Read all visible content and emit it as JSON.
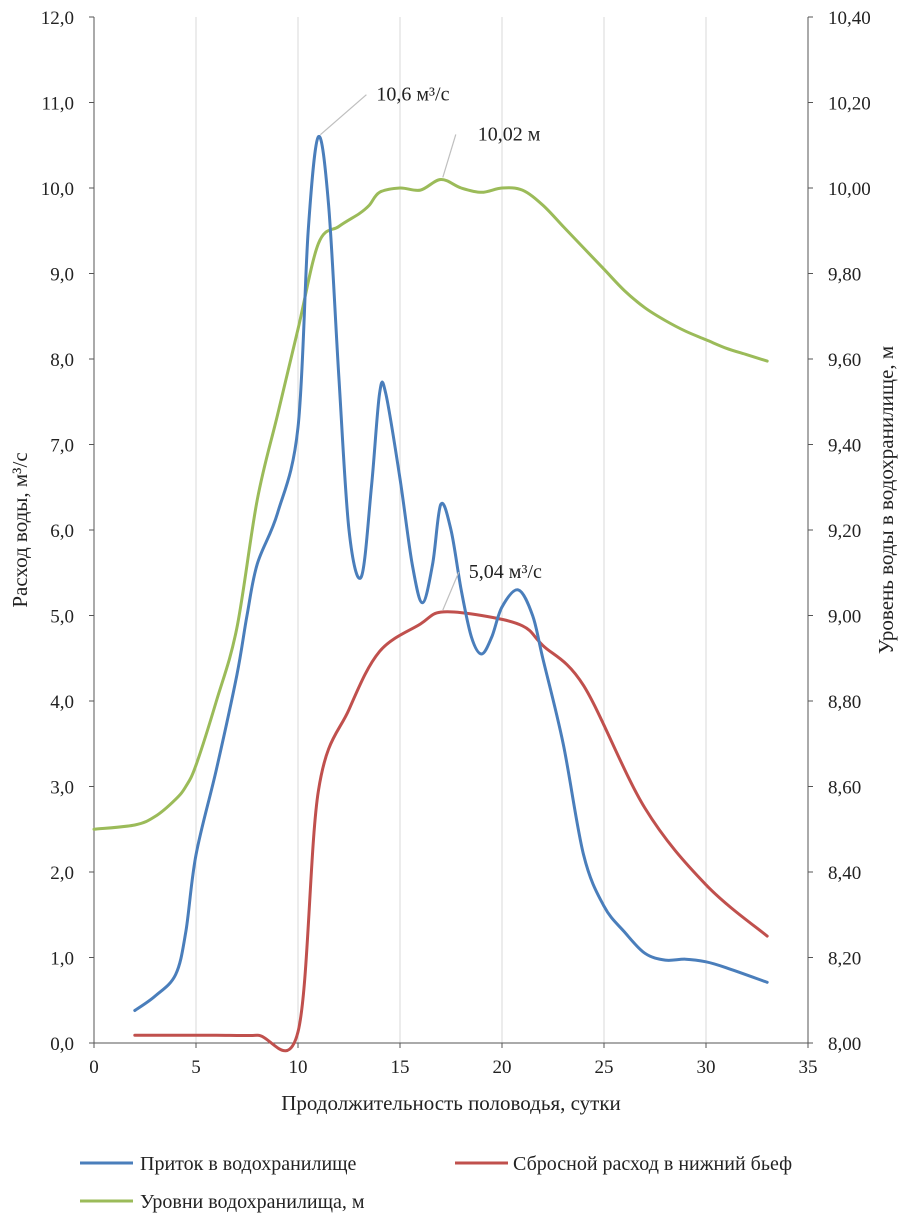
{
  "chart_data": {
    "type": "line",
    "xlabel": "Продолжительность половодья, сутки",
    "ylabel": "Расход воды, м³/с",
    "y2label": "Уровень воды в водохранилище, м",
    "xlim": [
      0,
      35
    ],
    "ylim": [
      0,
      12
    ],
    "y2lim": [
      8.0,
      10.4
    ],
    "x_ticks": [
      "0",
      "5",
      "10",
      "15",
      "20",
      "25",
      "30",
      "35"
    ],
    "y_ticks": [
      "0,0",
      "1,0",
      "2,0",
      "3,0",
      "4,0",
      "5,0",
      "6,0",
      "7,0",
      "8,0",
      "9,0",
      "10,0",
      "11,0",
      "12,0"
    ],
    "y2_ticks": [
      "8,00",
      "8,20",
      "8,40",
      "8,60",
      "8,80",
      "9,00",
      "9,20",
      "9,40",
      "9,60",
      "9,80",
      "10,00",
      "10,20",
      "10,40"
    ],
    "grid": "vertical",
    "legend_position": "bottom",
    "series": [
      {
        "name": "Приток в водохранилище",
        "axis": "left",
        "color": "#4a7ebb",
        "points": [
          [
            2,
            0.38
          ],
          [
            3,
            0.55
          ],
          [
            4,
            0.8
          ],
          [
            4.5,
            1.3
          ],
          [
            5,
            2.2
          ],
          [
            6,
            3.2
          ],
          [
            7,
            4.3
          ],
          [
            7.5,
            5.0
          ],
          [
            8,
            5.6
          ],
          [
            9,
            6.2
          ],
          [
            10,
            7.2
          ],
          [
            10.5,
            9.5
          ],
          [
            11,
            10.6
          ],
          [
            11.5,
            9.8
          ],
          [
            12,
            7.8
          ],
          [
            12.5,
            6.0
          ],
          [
            13.1,
            5.45
          ],
          [
            13.6,
            6.5
          ],
          [
            14,
            7.6
          ],
          [
            14.3,
            7.6
          ],
          [
            15,
            6.6
          ],
          [
            15.6,
            5.6
          ],
          [
            16.1,
            5.15
          ],
          [
            16.6,
            5.6
          ],
          [
            17,
            6.3
          ],
          [
            17.5,
            6.0
          ],
          [
            18,
            5.3
          ],
          [
            18.5,
            4.75
          ],
          [
            19,
            4.55
          ],
          [
            19.5,
            4.75
          ],
          [
            20,
            5.1
          ],
          [
            20.8,
            5.3
          ],
          [
            21.5,
            5.0
          ],
          [
            22,
            4.5
          ],
          [
            23,
            3.5
          ],
          [
            24,
            2.2
          ],
          [
            25,
            1.6
          ],
          [
            26,
            1.3
          ],
          [
            27,
            1.05
          ],
          [
            28,
            0.97
          ],
          [
            29,
            0.98
          ],
          [
            30,
            0.95
          ],
          [
            31,
            0.88
          ],
          [
            33,
            0.71
          ]
        ]
      },
      {
        "name": "Сбросной расход в нижний бьеф",
        "axis": "left",
        "color": "#c0504d",
        "points": [
          [
            2,
            0.09
          ],
          [
            4,
            0.09
          ],
          [
            6,
            0.09
          ],
          [
            8,
            0.09
          ],
          [
            10,
            0.13
          ],
          [
            11,
            2.95
          ],
          [
            12.5,
            3.9
          ],
          [
            14,
            4.58
          ],
          [
            16,
            4.9
          ],
          [
            17,
            5.04
          ],
          [
            19,
            5.0
          ],
          [
            21,
            4.88
          ],
          [
            22,
            4.65
          ],
          [
            24,
            4.18
          ],
          [
            27,
            2.75
          ],
          [
            30,
            1.85
          ],
          [
            33,
            1.25
          ]
        ]
      },
      {
        "name": "Уровни водохранилища, м",
        "axis": "right",
        "color": "#9bbb59",
        "points": [
          [
            0,
            8.5
          ],
          [
            2,
            8.51
          ],
          [
            3,
            8.53
          ],
          [
            4,
            8.57
          ],
          [
            4.5,
            8.6
          ],
          [
            5,
            8.65
          ],
          [
            6,
            8.8
          ],
          [
            7,
            8.97
          ],
          [
            8,
            9.27
          ],
          [
            9,
            9.47
          ],
          [
            10,
            9.67
          ],
          [
            11,
            9.87
          ],
          [
            12,
            9.91
          ],
          [
            13,
            9.94
          ],
          [
            13.5,
            9.96
          ],
          [
            14,
            9.99
          ],
          [
            15,
            10.0
          ],
          [
            16,
            9.995
          ],
          [
            17,
            10.02
          ],
          [
            18,
            10.0
          ],
          [
            19,
            9.99
          ],
          [
            20,
            10.0
          ],
          [
            21,
            9.995
          ],
          [
            22,
            9.96
          ],
          [
            23,
            9.91
          ],
          [
            24,
            9.86
          ],
          [
            25,
            9.81
          ],
          [
            26,
            9.76
          ],
          [
            27,
            9.72
          ],
          [
            28,
            9.69
          ],
          [
            29,
            9.665
          ],
          [
            30,
            9.645
          ],
          [
            31,
            9.625
          ],
          [
            32,
            9.61
          ],
          [
            33,
            9.595
          ]
        ]
      }
    ],
    "annotations": [
      {
        "text": "10,6 м³/с",
        "x": 11,
        "y": 10.6,
        "axis": "left"
      },
      {
        "text": "10,02 м",
        "x": 17,
        "y": 10.02,
        "axis": "right"
      },
      {
        "text": "5,04 м³/с",
        "x": 17,
        "y": 5.04,
        "axis": "left"
      }
    ]
  }
}
